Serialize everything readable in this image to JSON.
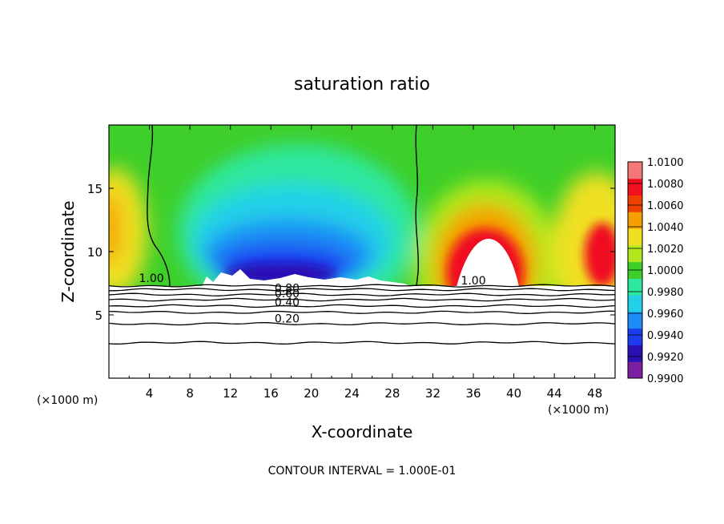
{
  "chart_data": {
    "type": "heatmap",
    "title": "saturation ratio",
    "xlabel": "X-coordinate",
    "ylabel": "Z-coordinate",
    "x_unit_left": "(×1000 m)",
    "x_unit_right": "(×1000 m)",
    "footer": "CONTOUR INTERVAL = 1.000E-01",
    "xlim": [
      0,
      50
    ],
    "ylim": [
      0,
      20
    ],
    "x_ticks": [
      4,
      8,
      12,
      16,
      20,
      24,
      28,
      32,
      36,
      40,
      44,
      48
    ],
    "y_ticks": [
      5,
      10,
      15
    ],
    "colorbar": {
      "levels": [
        "1.0100",
        "1.0080",
        "1.0060",
        "1.0040",
        "1.0020",
        "1.0000",
        "0.9980",
        "0.9960",
        "0.9940",
        "0.9920",
        "0.9900"
      ],
      "min": 0.99,
      "max": 1.01,
      "colors": [
        "#7a1fa0",
        "#2a10b4",
        "#1c3cf0",
        "#1e8cf5",
        "#22d0e8",
        "#2ee8a0",
        "#3ecf2a",
        "#b4e81e",
        "#f0e020",
        "#f5a000",
        "#f04000",
        "#f01020",
        "#f47878"
      ]
    },
    "contours": [
      {
        "label": "1.00",
        "x": 4.2,
        "y": 7.6
      },
      {
        "label": "1.00",
        "x": 36.0,
        "y": 7.4
      },
      {
        "label": "0.80",
        "x": 17.6,
        "y": 6.8
      },
      {
        "label": "0.60",
        "x": 17.6,
        "y": 6.4
      },
      {
        "label": "0.40",
        "x": 17.6,
        "y": 5.7
      },
      {
        "label": "0.20",
        "x": 17.6,
        "y": 4.4
      }
    ],
    "contour_levels_below": [
      {
        "y": 7.3
      },
      {
        "y": 7.0
      },
      {
        "y": 6.6
      },
      {
        "y": 6.2
      },
      {
        "y": 5.7
      },
      {
        "y": 5.2
      },
      {
        "y": 4.3
      },
      {
        "y": 2.8
      }
    ]
  }
}
